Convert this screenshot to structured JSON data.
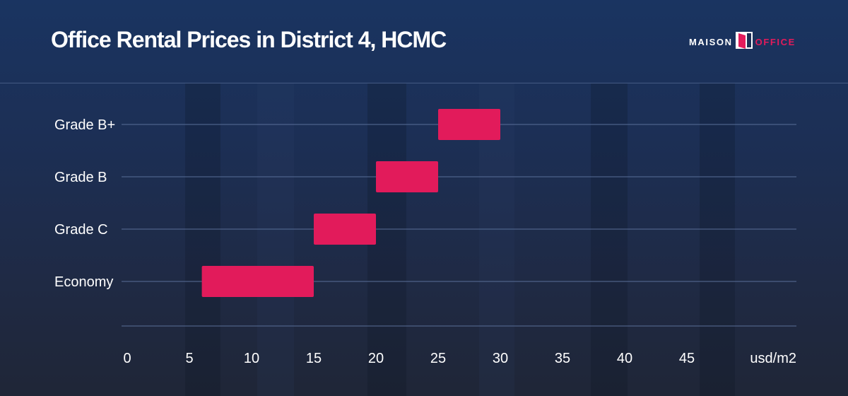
{
  "header": {
    "title": "Office Rental Prices in District 4, HCMC",
    "brand_left": "MAISON",
    "brand_right": "OFFICE"
  },
  "colors": {
    "bar": "#e21b5b",
    "text": "#ffffff",
    "grid": "#5a6f99",
    "brand_accent": "#e21b5b"
  },
  "chart_data": {
    "type": "bar",
    "orientation": "horizontal-range",
    "title": "Office Rental Prices in District 4, HCMC",
    "xlabel": "",
    "ylabel": "",
    "unit_label": "usd/m2",
    "categories": [
      "Grade B+",
      "Grade B",
      "Grade C",
      "Economy"
    ],
    "ranges": [
      {
        "category": "Grade B+",
        "low": 25,
        "high": 30
      },
      {
        "category": "Grade B",
        "low": 20,
        "high": 25
      },
      {
        "category": "Grade C",
        "low": 15,
        "high": 20
      },
      {
        "category": "Economy",
        "low": 6,
        "high": 15
      }
    ],
    "x_ticks": [
      "0",
      "5",
      "10",
      "15",
      "20",
      "25",
      "30",
      "35",
      "40",
      "45"
    ],
    "xlim": [
      0,
      52
    ],
    "grid": true,
    "legend": "none"
  }
}
